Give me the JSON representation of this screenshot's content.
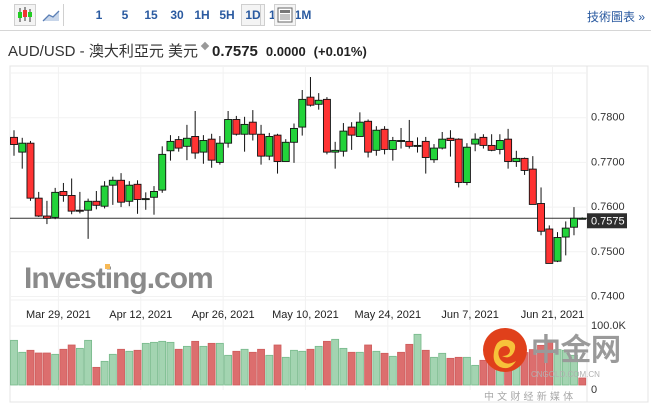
{
  "toolbar": {
    "chart_types": [
      {
        "name": "candlestick-icon",
        "selected": true
      },
      {
        "name": "line-chart-icon",
        "selected": false
      }
    ],
    "intervals": [
      {
        "label": "1",
        "selected": false
      },
      {
        "label": "5",
        "selected": false
      },
      {
        "label": "15",
        "selected": false
      },
      {
        "label": "30",
        "selected": false
      },
      {
        "label": "1H",
        "selected": false
      },
      {
        "label": "5H",
        "selected": false
      },
      {
        "label": "1D",
        "selected": true
      },
      {
        "label": "1W",
        "selected": false
      },
      {
        "label": "1M",
        "selected": false
      }
    ],
    "right_link": "技術圖表 »"
  },
  "header": {
    "symbol_name": "AUD/USD - 澳大利亞元 美元",
    "price": "0.7575",
    "change": "0.0000",
    "change_pct": "(+0.01%)"
  },
  "colors": {
    "up": "#22d33a",
    "down": "#ff3333",
    "vol_up": "#a3d4b1",
    "vol_down": "#dc6e6e",
    "link": "#2a5aa0"
  },
  "chart_data": {
    "type": "candlestick",
    "symbol": "AUD/USD",
    "timeframe": "1D",
    "current_price_label": "0.7575",
    "current_price": 0.7575,
    "y_ticks": [
      "0.7800",
      "0.7700",
      "0.7600",
      "0.7500",
      "0.7400"
    ],
    "y_tick_values": [
      0.78,
      0.77,
      0.76,
      0.75,
      0.74
    ],
    "ylim": [
      0.7355,
      0.79
    ],
    "x_ticks": [
      {
        "label": "Mar 29, 2021",
        "index": 6
      },
      {
        "label": "Apr 12, 2021",
        "index": 16
      },
      {
        "label": "Apr 26, 2021",
        "index": 26
      },
      {
        "label": "May 10, 2021",
        "index": 36
      },
      {
        "label": "May 24, 2021",
        "index": 46
      },
      {
        "label": "Jun 7, 2021",
        "index": 56
      },
      {
        "label": "Jun 21, 2021",
        "index": 66
      }
    ],
    "volume_ticks": [
      "100.0K",
      "0"
    ],
    "volume_max": 100000,
    "ohlc": [
      [
        0.7756,
        0.7772,
        0.7715,
        0.774
      ],
      [
        0.7723,
        0.7755,
        0.7686,
        0.7743
      ],
      [
        0.7743,
        0.7748,
        0.7614,
        0.762
      ],
      [
        0.762,
        0.7634,
        0.7578,
        0.758
      ],
      [
        0.758,
        0.7614,
        0.7562,
        0.7575
      ],
      [
        0.7577,
        0.7643,
        0.7573,
        0.7633
      ],
      [
        0.7635,
        0.7654,
        0.7612,
        0.7626
      ],
      [
        0.7626,
        0.7664,
        0.7584,
        0.7591
      ],
      [
        0.7593,
        0.7634,
        0.7586,
        0.7592
      ],
      [
        0.7593,
        0.7619,
        0.7529,
        0.7613
      ],
      [
        0.7613,
        0.7636,
        0.7595,
        0.7604
      ],
      [
        0.7602,
        0.7658,
        0.7597,
        0.7647
      ],
      [
        0.7649,
        0.7668,
        0.7605,
        0.766
      ],
      [
        0.766,
        0.7676,
        0.76,
        0.7611
      ],
      [
        0.7613,
        0.7658,
        0.7602,
        0.7649
      ],
      [
        0.7651,
        0.766,
        0.7585,
        0.7617
      ],
      [
        0.7619,
        0.7633,
        0.7594,
        0.7619
      ],
      [
        0.7622,
        0.7647,
        0.7583,
        0.7635
      ],
      [
        0.7638,
        0.7736,
        0.7632,
        0.7718
      ],
      [
        0.7726,
        0.7761,
        0.7704,
        0.7747
      ],
      [
        0.7751,
        0.7759,
        0.7724,
        0.7732
      ],
      [
        0.7736,
        0.7784,
        0.7705,
        0.7754
      ],
      [
        0.7758,
        0.7815,
        0.7708,
        0.7721
      ],
      [
        0.7723,
        0.7761,
        0.7697,
        0.7749
      ],
      [
        0.7752,
        0.7764,
        0.7688,
        0.7705
      ],
      [
        0.77,
        0.7759,
        0.7695,
        0.7743
      ],
      [
        0.7743,
        0.7815,
        0.7733,
        0.7796
      ],
      [
        0.7796,
        0.7804,
        0.776,
        0.7763
      ],
      [
        0.7763,
        0.7802,
        0.7724,
        0.7785
      ],
      [
        0.779,
        0.7817,
        0.7749,
        0.7763
      ],
      [
        0.7763,
        0.7784,
        0.7695,
        0.7714
      ],
      [
        0.7714,
        0.7766,
        0.7705,
        0.7758
      ],
      [
        0.7761,
        0.7764,
        0.7675,
        0.7702
      ],
      [
        0.7702,
        0.7752,
        0.7702,
        0.7745
      ],
      [
        0.7745,
        0.7787,
        0.7699,
        0.7776
      ],
      [
        0.7779,
        0.7862,
        0.776,
        0.7841
      ],
      [
        0.7846,
        0.7891,
        0.7825,
        0.7828
      ],
      [
        0.783,
        0.7855,
        0.7818,
        0.7839
      ],
      [
        0.7841,
        0.7846,
        0.7718,
        0.7723
      ],
      [
        0.7723,
        0.7746,
        0.7686,
        0.7727
      ],
      [
        0.7725,
        0.7788,
        0.7713,
        0.777
      ],
      [
        0.7779,
        0.779,
        0.7728,
        0.7761
      ],
      [
        0.7758,
        0.7812,
        0.7758,
        0.779
      ],
      [
        0.7792,
        0.7796,
        0.7711,
        0.7723
      ],
      [
        0.7727,
        0.7781,
        0.7715,
        0.7772
      ],
      [
        0.7774,
        0.7781,
        0.7718,
        0.7729
      ],
      [
        0.7729,
        0.7757,
        0.7704,
        0.7749
      ],
      [
        0.7747,
        0.7777,
        0.7731,
        0.7749
      ],
      [
        0.7747,
        0.7795,
        0.7731,
        0.7736
      ],
      [
        0.7738,
        0.7756,
        0.7722,
        0.7738
      ],
      [
        0.7747,
        0.7757,
        0.7675,
        0.7711
      ],
      [
        0.7706,
        0.7741,
        0.7699,
        0.7732
      ],
      [
        0.7732,
        0.7768,
        0.7729,
        0.7752
      ],
      [
        0.7754,
        0.7772,
        0.7713,
        0.7749
      ],
      [
        0.7752,
        0.7754,
        0.7644,
        0.7655
      ],
      [
        0.7655,
        0.7743,
        0.7649,
        0.7734
      ],
      [
        0.7741,
        0.7765,
        0.7725,
        0.7752
      ],
      [
        0.7756,
        0.7763,
        0.7731,
        0.7738
      ],
      [
        0.7738,
        0.7763,
        0.7725,
        0.7727
      ],
      [
        0.7729,
        0.7763,
        0.7718,
        0.7749
      ],
      [
        0.7752,
        0.7775,
        0.7686,
        0.7702
      ],
      [
        0.7702,
        0.7726,
        0.769,
        0.7709
      ],
      [
        0.7709,
        0.7711,
        0.7672,
        0.7682
      ],
      [
        0.7685,
        0.7714,
        0.7606,
        0.7606
      ],
      [
        0.7608,
        0.7644,
        0.7537,
        0.7546
      ],
      [
        0.7551,
        0.7559,
        0.7474,
        0.7474
      ],
      [
        0.7479,
        0.7544,
        0.7477,
        0.7532
      ],
      [
        0.7533,
        0.7568,
        0.7492,
        0.7553
      ],
      [
        0.7555,
        0.76,
        0.7537,
        0.7575
      ],
      [
        0.7575,
        0.7577,
        0.7573,
        0.7575
      ]
    ],
    "volume": [
      75700,
      55400,
      58800,
      54200,
      54200,
      52000,
      60500,
      67800,
      62100,
      75700,
      29900,
      40100,
      52000,
      60500,
      57100,
      58800,
      70600,
      72300,
      74000,
      72300,
      60500,
      65500,
      74000,
      65500,
      70600,
      70600,
      50300,
      57100,
      60500,
      55400,
      60500,
      50300,
      67800,
      46900,
      58800,
      57100,
      60500,
      65500,
      74000,
      77400,
      62100,
      55400,
      55400,
      67800,
      57100,
      53700,
      48600,
      55400,
      68900,
      85900,
      58800,
      46900,
      53700,
      45200,
      46900,
      46900,
      33300,
      41800,
      40100,
      45000,
      50000,
      40000,
      55000,
      60000,
      67200,
      74000,
      60000,
      58800,
      50300,
      11900
    ],
    "volume_up": [
      true,
      true,
      false,
      false,
      false,
      true,
      false,
      false,
      true,
      true,
      false,
      true,
      true,
      false,
      true,
      false,
      true,
      true,
      true,
      true,
      false,
      true,
      false,
      true,
      false,
      true,
      true,
      false,
      true,
      false,
      false,
      true,
      false,
      true,
      true,
      true,
      false,
      true,
      false,
      true,
      true,
      false,
      true,
      false,
      true,
      false,
      true,
      false,
      false,
      true,
      false,
      true,
      true,
      false,
      false,
      true,
      true,
      false,
      false,
      true,
      false,
      true,
      false,
      false,
      false,
      false,
      true,
      true,
      true,
      false
    ]
  },
  "watermarks": {
    "investing": "Investing.com",
    "cngold_cn": "中金网",
    "cngold_en": "CNGOLD.COM.CN",
    "cngold_tagline": "中 文 财 经 新 媒 体"
  }
}
